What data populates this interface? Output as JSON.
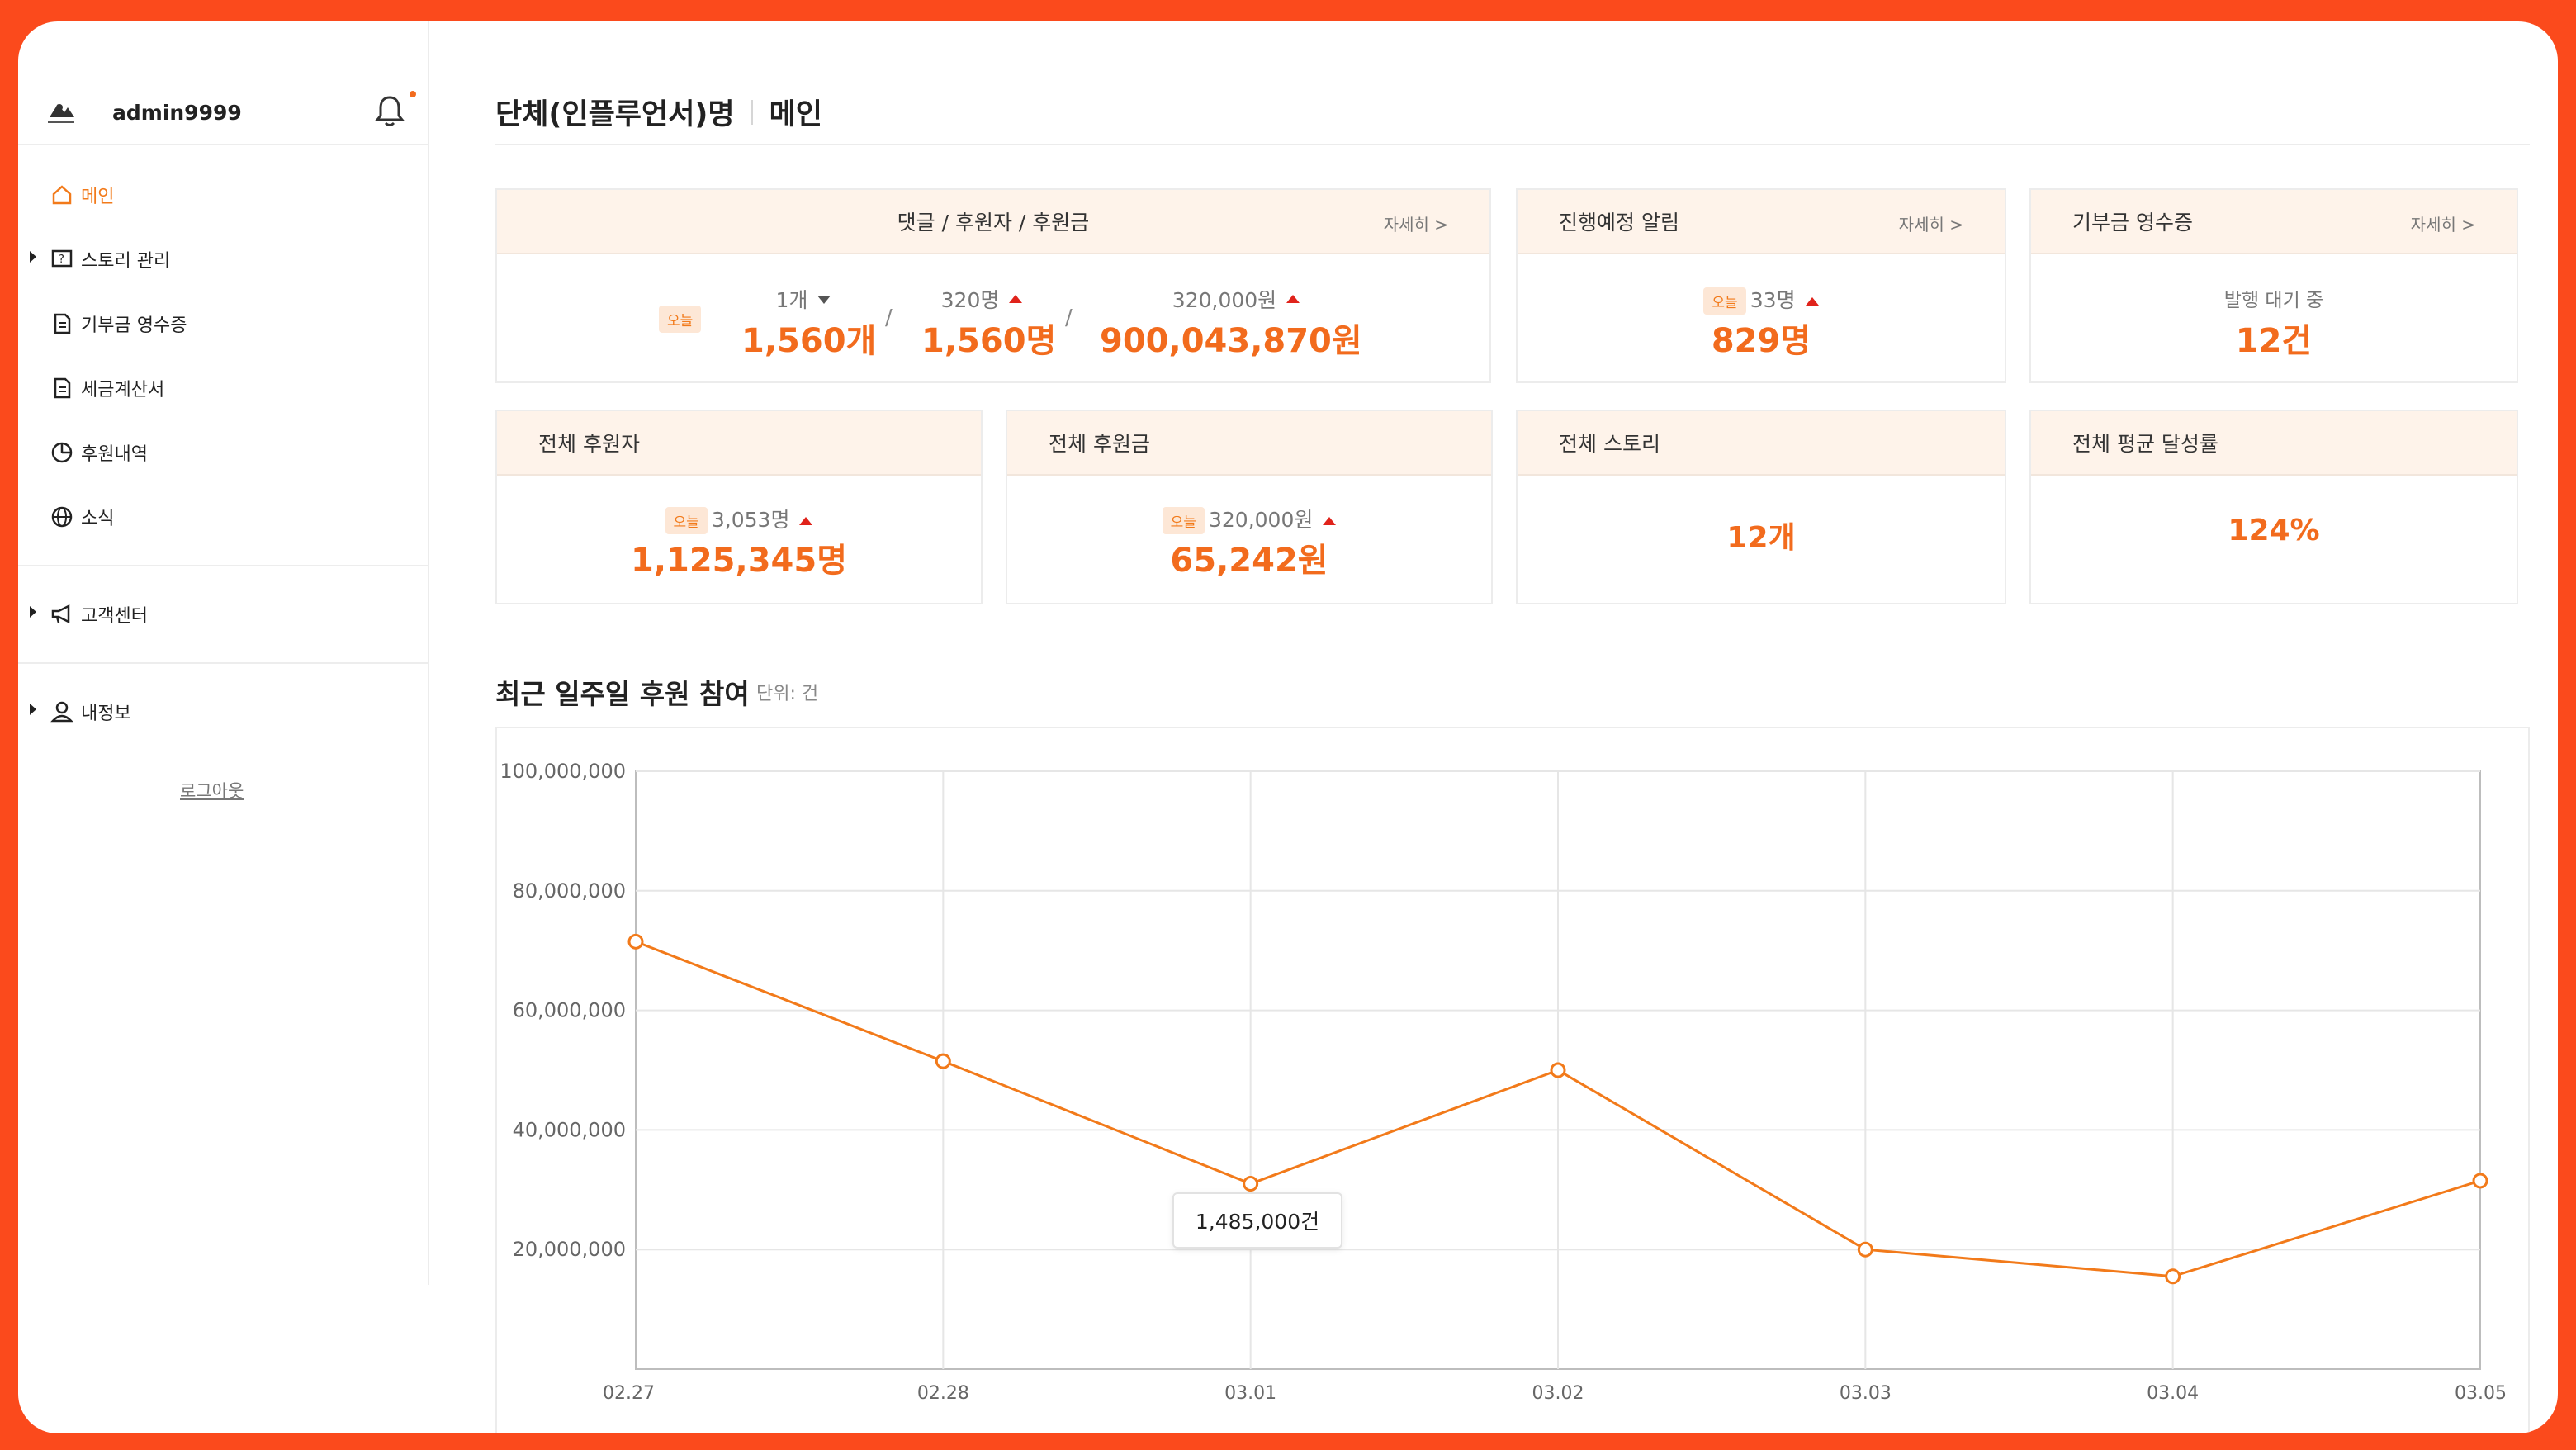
{
  "sidebar": {
    "username": "admin9999",
    "items": [
      {
        "label": "메인"
      },
      {
        "label": "스토리 관리"
      },
      {
        "label": "기부금 영수증"
      },
      {
        "label": "세금계산서"
      },
      {
        "label": "후원내역"
      },
      {
        "label": "소식"
      },
      {
        "label": "고객센터"
      },
      {
        "label": "내정보"
      }
    ],
    "logout": "로그아웃"
  },
  "header": {
    "org": "단체(인플루언서)명",
    "page": "메인"
  },
  "cards": {
    "more_label": "자세히 >",
    "today_label": "오늘",
    "comments": {
      "title": "댓글 / 후원자 / 후원금",
      "stats": [
        {
          "sub": "1개",
          "trend": "down",
          "big": "1,560개"
        },
        {
          "sub": "320명",
          "trend": "up",
          "big": "1,560명"
        },
        {
          "sub": "320,000원",
          "trend": "up",
          "big": "900,043,870원"
        }
      ],
      "separator": "/"
    },
    "upcoming": {
      "title": "진행예정 알림",
      "sub": "33명",
      "big": "829명"
    },
    "receipt": {
      "title": "기부금 영수증",
      "sub": "발행 대기 중",
      "big": "12건"
    },
    "total_donors": {
      "title": "전체 후원자",
      "sub": "3,053명",
      "big": "1,125,345명"
    },
    "total_amount": {
      "title": "전체 후원금",
      "sub": "320,000원",
      "big": "65,242원"
    },
    "total_stories": {
      "title": "전체 스토리",
      "big": "12개"
    },
    "avg_rate": {
      "title": "전체 평균 달성률",
      "big": "124%"
    }
  },
  "chart_section": {
    "title": "최근 일주일 후원 참여",
    "unit": "단위: 건",
    "tooltip": "1,485,000건"
  },
  "chart_data": {
    "type": "line",
    "title": "최근 일주일 후원 참여",
    "xlabel": "",
    "ylabel": "",
    "x": [
      "02.27",
      "02.28",
      "03.01",
      "03.02",
      "03.03",
      "03.04",
      "03.05"
    ],
    "series": [
      {
        "values": [
          71500000,
          51500000,
          31000000,
          50000000,
          20000000,
          15500000,
          31500000
        ],
        "color": "#f27a1a"
      }
    ],
    "ylim": [
      0,
      100000000
    ],
    "yticks": [
      "100,000,000",
      "80,000,000",
      "60,000,000",
      "40,000,000",
      "20,000,000"
    ],
    "grid": true
  },
  "colors": {
    "accent": "#f26b1d",
    "frame": "#fb4a1c",
    "card_head_bg": "#fef3ea",
    "up": "#e0231b"
  }
}
